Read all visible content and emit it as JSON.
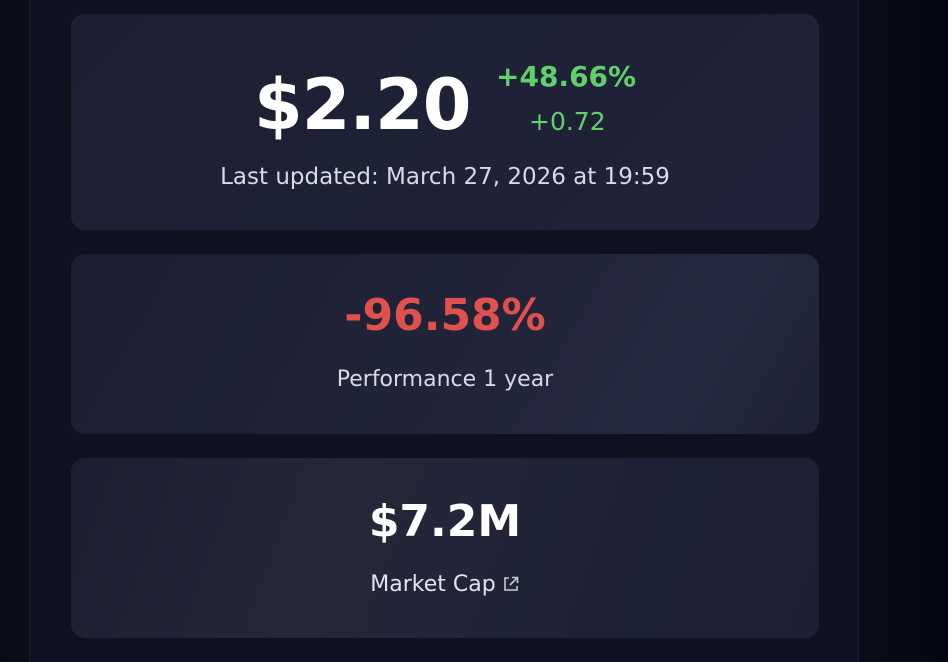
{
  "price_card": {
    "price": "$2.20",
    "change_percent": "+48.66%",
    "change_absolute": "+0.72",
    "last_updated": "Last updated: March 27, 2026 at 19:59"
  },
  "performance_card": {
    "value": "-96.58%",
    "label": "Performance 1 year"
  },
  "market_cap_card": {
    "value": "$7.2M",
    "label": "Market Cap",
    "link_icon": "external-link-icon"
  },
  "colors": {
    "positive": "#5fd06b",
    "negative": "#e0514d",
    "card_bg": "#1d2032",
    "page_bg": "#101221"
  }
}
